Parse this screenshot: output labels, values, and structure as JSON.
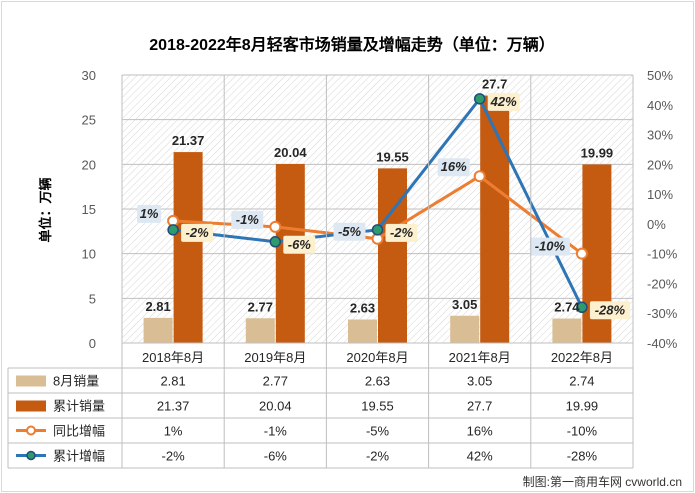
{
  "chart_data": {
    "type": "bar",
    "title": "2018-2022年8月轻客市场销量及增幅走势（单位：万辆）",
    "ylabel": "单位：万辆",
    "ylim": [
      0,
      30
    ],
    "y_ticks": [
      "0",
      "5",
      "10",
      "15",
      "20",
      "25",
      "30"
    ],
    "y2lim": [
      -40,
      50
    ],
    "y2_ticks": [
      "-40%",
      "-30%",
      "-20%",
      "-10%",
      "0%",
      "10%",
      "20%",
      "30%",
      "40%",
      "50%"
    ],
    "categories": [
      "2018年8月",
      "2019年8月",
      "2020年8月",
      "2021年8月",
      "2022年8月"
    ],
    "series": [
      {
        "name": "8月销量",
        "kind": "bar",
        "color": "#d9bd95",
        "values": [
          2.81,
          2.77,
          2.63,
          3.05,
          2.74
        ],
        "labels": [
          "2.81",
          "2.77",
          "2.63",
          "3.05",
          "2.74"
        ]
      },
      {
        "name": "累计销量",
        "kind": "bar",
        "color": "#c55a11",
        "values": [
          21.37,
          20.04,
          19.55,
          27.7,
          19.99
        ],
        "labels": [
          "21.37",
          "20.04",
          "19.55",
          "27.7",
          "19.99"
        ]
      },
      {
        "name": "同比增幅",
        "kind": "line",
        "axis": "right",
        "color": "#ed7d31",
        "values": [
          1,
          -1,
          -5,
          16,
          -10
        ],
        "labels": [
          "1%",
          "-1%",
          "-5%",
          "16%",
          "-10%"
        ]
      },
      {
        "name": "累计增幅",
        "kind": "line",
        "axis": "right",
        "color": "#2e75b6",
        "values": [
          -2,
          -6,
          -2,
          42,
          -28
        ],
        "labels": [
          "-2%",
          "-6%",
          "-2%",
          "42%",
          "-28%"
        ]
      }
    ],
    "grid": true,
    "legend": "data-table"
  },
  "source": "制图:第一商用车网 cvworld.cn"
}
